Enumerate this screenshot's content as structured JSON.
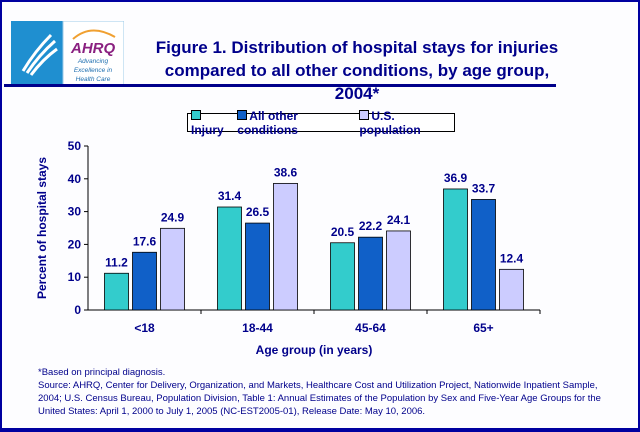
{
  "header": {
    "title_line1": "Figure 1. Distribution of hospital stays for injuries",
    "title_line2": "compared to all other conditions, by age group, 2004*",
    "logo_text": "AHRQ",
    "logo_tagline": "Advancing Excellence in Health Care"
  },
  "chart_data": {
    "type": "bar",
    "categories": [
      "<18",
      "18-44",
      "45-64",
      "65+"
    ],
    "series": [
      {
        "name": "Injury",
        "values": [
          11.2,
          31.4,
          20.5,
          36.9
        ],
        "color": "#33CCCC"
      },
      {
        "name": "All other conditions",
        "values": [
          17.6,
          26.5,
          22.2,
          33.7
        ],
        "color": "#1060C8"
      },
      {
        "name": "U.S. population",
        "values": [
          24.9,
          38.6,
          24.1,
          12.4
        ],
        "color": "#CCCCFF"
      }
    ],
    "xlabel": "Age group (in years)",
    "ylabel": "Percent of hospital stays",
    "ylim": [
      0,
      50
    ],
    "yticks": [
      0,
      10,
      20,
      30,
      40,
      50
    ],
    "grid": false,
    "legend": "top-center",
    "data_labels": true
  },
  "footnotes": {
    "note": "*Based on principal diagnosis.",
    "source": "Source: AHRQ, Center for Delivery, Organization, and Markets, Healthcare Cost and Utilization Project, Nationwide Inpatient Sample, 2004; U.S. Census Bureau, Population Division, Table 1: Annual Estimates of the Population by Sex and Five-Year Age Groups for the United States: April 1, 2000 to July 1, 2005 (NC-EST2005-01), Release Date: May 10, 2006."
  }
}
